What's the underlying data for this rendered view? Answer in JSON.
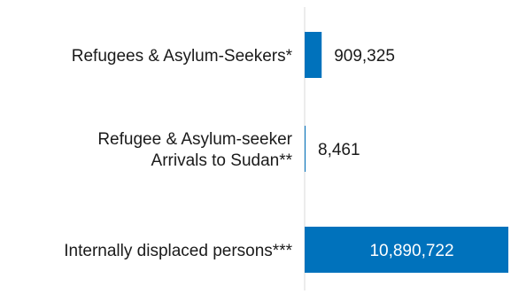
{
  "chart_data": {
    "type": "bar",
    "orientation": "horizontal",
    "categories": [
      "Refugees & Asylum-Seekers*",
      "Refugee & Asylum-seeker Arrivals to Sudan**",
      "Internally displaced persons***"
    ],
    "category_lines": [
      [
        "Refugees & Asylum-Seekers*"
      ],
      [
        "Refugee & Asylum-seeker",
        "Arrivals to Sudan**"
      ],
      [
        "Internally displaced persons***"
      ]
    ],
    "values": [
      909325,
      8461,
      10890722
    ],
    "value_labels": [
      "909,325",
      "8,461",
      "10,890,722"
    ],
    "xlim": [
      0,
      10890722
    ],
    "grid": false,
    "bar_color": "#0072bc",
    "axis_color": "#d9d9d9",
    "label_color": "#1a1a1a",
    "inside_label_color": "#ffffff"
  }
}
